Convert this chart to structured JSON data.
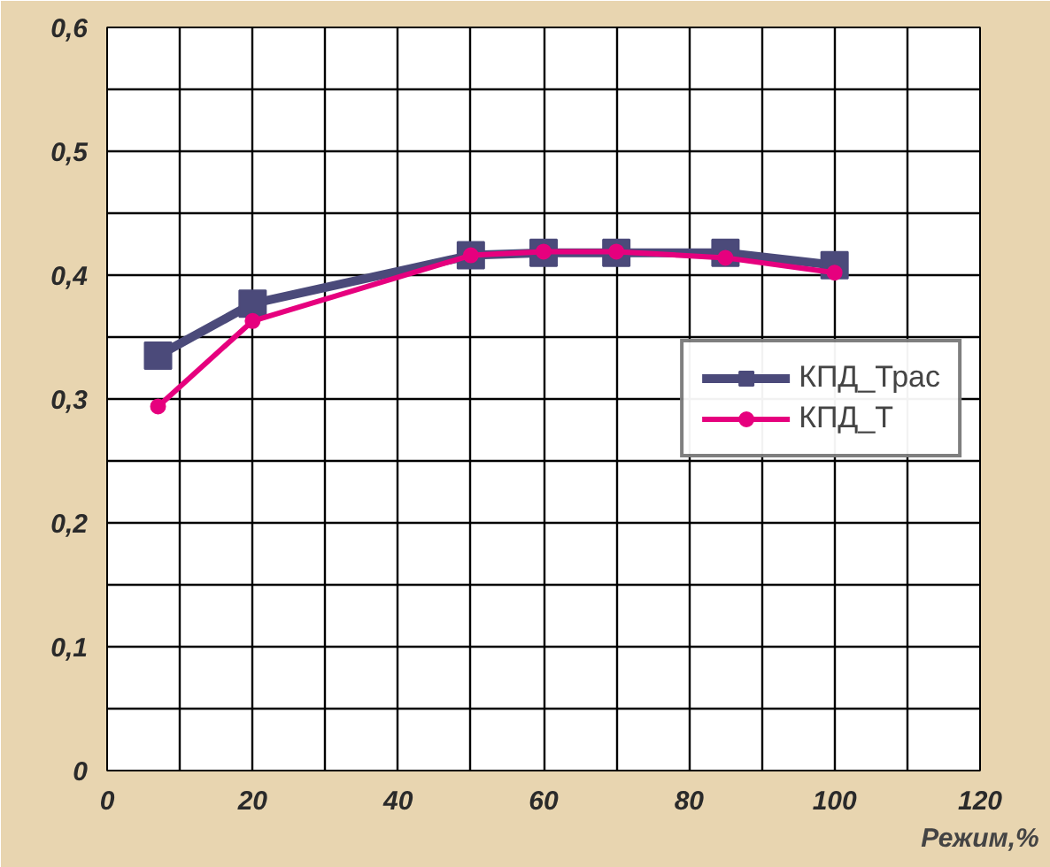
{
  "chart_data": {
    "type": "line",
    "xlabel": "Режим,%",
    "x": [
      7,
      20,
      50,
      60,
      70,
      85,
      100
    ],
    "series": [
      {
        "name": "КПД_Трас",
        "color": "#4b4a7a",
        "marker": "square",
        "values": [
          0.335,
          0.377,
          0.416,
          0.418,
          0.418,
          0.418,
          0.408
        ]
      },
      {
        "name": "КПД_Т",
        "color": "#e6007e",
        "marker": "circle",
        "values": [
          0.294,
          0.363,
          0.416,
          0.419,
          0.419,
          0.414,
          0.402
        ]
      }
    ],
    "xlim": [
      0,
      120
    ],
    "xticks": [
      0,
      {
        "value": 10,
        "label": null
      },
      20,
      {
        "value": 30,
        "label": null
      },
      40,
      {
        "value": 50,
        "label": null
      },
      60,
      {
        "value": 70,
        "label": null
      },
      80,
      {
        "value": 90,
        "label": null
      },
      100,
      {
        "value": 110,
        "label": null
      },
      120
    ],
    "ylim": [
      0,
      0.6
    ],
    "yticks": [
      0,
      {
        "value": 0.05,
        "label": null
      },
      {
        "value": 0.1,
        "label": "0,1"
      },
      {
        "value": 0.15,
        "label": null
      },
      {
        "value": 0.2,
        "label": "0,2"
      },
      {
        "value": 0.25,
        "label": null
      },
      {
        "value": 0.3,
        "label": "0,3"
      },
      {
        "value": 0.35,
        "label": null
      },
      {
        "value": 0.4,
        "label": "0,4"
      },
      {
        "value": 0.45,
        "label": null
      },
      {
        "value": 0.5,
        "label": "0,5"
      },
      {
        "value": 0.55,
        "label": null
      },
      {
        "value": 0.6,
        "label": "0,6"
      }
    ],
    "grid": true,
    "legend": "right",
    "line_style": "solid"
  }
}
